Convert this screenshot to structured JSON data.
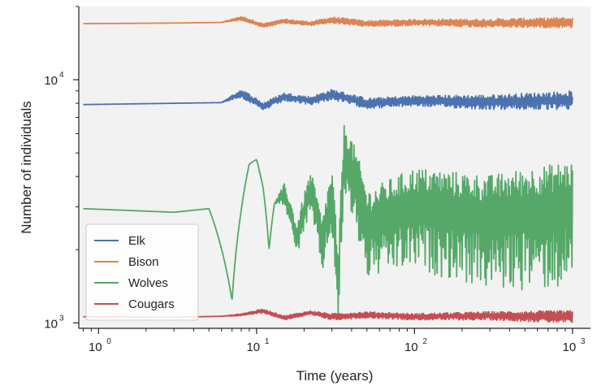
{
  "chart_data": {
    "type": "line",
    "xlabel": "Time (years)",
    "ylabel": "Number of individuals",
    "xscale": "log",
    "yscale": "log",
    "xlim": [
      0.75,
      1300
    ],
    "ylim": [
      950,
      20000
    ],
    "x_ticks": [
      {
        "value": 1,
        "base": "10",
        "exp": "0"
      },
      {
        "value": 10,
        "base": "10",
        "exp": "1"
      },
      {
        "value": 100,
        "base": "10",
        "exp": "2"
      },
      {
        "value": 1000,
        "base": "10",
        "exp": "3"
      }
    ],
    "y_ticks": [
      {
        "value": 1000,
        "base": "10",
        "exp": "3"
      },
      {
        "value": 10000,
        "base": "10",
        "exp": "4"
      }
    ],
    "background": "#f2f2f2",
    "grid": false,
    "legend_position": "lower-left",
    "series": [
      {
        "name": "Elk",
        "color": "#4c72b0",
        "base": 8000,
        "x": [
          0.8,
          3,
          6,
          8,
          11,
          15,
          22,
          30,
          50,
          100,
          300,
          1000
        ],
        "y": [
          7900,
          8000,
          8050,
          8800,
          7750,
          8500,
          8200,
          8700,
          8000,
          8200,
          8100,
          8250
        ],
        "noise": [
          0,
          0,
          0,
          0.04,
          0.04,
          0.04,
          0.04,
          0.05,
          0.05,
          0.05,
          0.07,
          0.09
        ]
      },
      {
        "name": "Bison",
        "color": "#dd8452",
        "base": 17000,
        "x": [
          0.8,
          3,
          6,
          8,
          11,
          15,
          22,
          30,
          50,
          100,
          300,
          1000
        ],
        "y": [
          17000,
          17100,
          17200,
          17900,
          16700,
          17400,
          17000,
          17600,
          17000,
          17200,
          17100,
          17200
        ],
        "noise": [
          0,
          0,
          0,
          0.02,
          0.02,
          0.02,
          0.02,
          0.03,
          0.03,
          0.03,
          0.04,
          0.05
        ]
      },
      {
        "name": "Wolves",
        "color": "#55a868",
        "base": 2800,
        "x": [
          0.8,
          3,
          5,
          7,
          8,
          9,
          10,
          11,
          12,
          13,
          15,
          18,
          22,
          26,
          30,
          33,
          36,
          50,
          100,
          300,
          1000
        ],
        "y": [
          2950,
          2850,
          2950,
          1230,
          2900,
          4500,
          4700,
          3600,
          2000,
          3100,
          3400,
          2200,
          3500,
          2100,
          3300,
          1200,
          5000,
          2500,
          3000,
          2700,
          3000
        ],
        "noise": [
          0,
          0,
          0,
          0,
          0,
          0,
          0,
          0,
          0,
          0,
          0.1,
          0.15,
          0.2,
          0.25,
          0.3,
          0.35,
          0.35,
          0.4,
          0.45,
          0.5,
          0.55
        ]
      },
      {
        "name": "Cougars",
        "color": "#c44e52",
        "base": 1060,
        "x": [
          0.8,
          3,
          6,
          8,
          11,
          15,
          22,
          30,
          50,
          100,
          300,
          1000
        ],
        "y": [
          1060,
          1055,
          1065,
          1080,
          1120,
          1050,
          1100,
          1060,
          1080,
          1060,
          1070,
          1060
        ],
        "noise": [
          0,
          0,
          0,
          0.01,
          0.02,
          0.02,
          0.02,
          0.03,
          0.03,
          0.03,
          0.04,
          0.06
        ]
      }
    ]
  }
}
